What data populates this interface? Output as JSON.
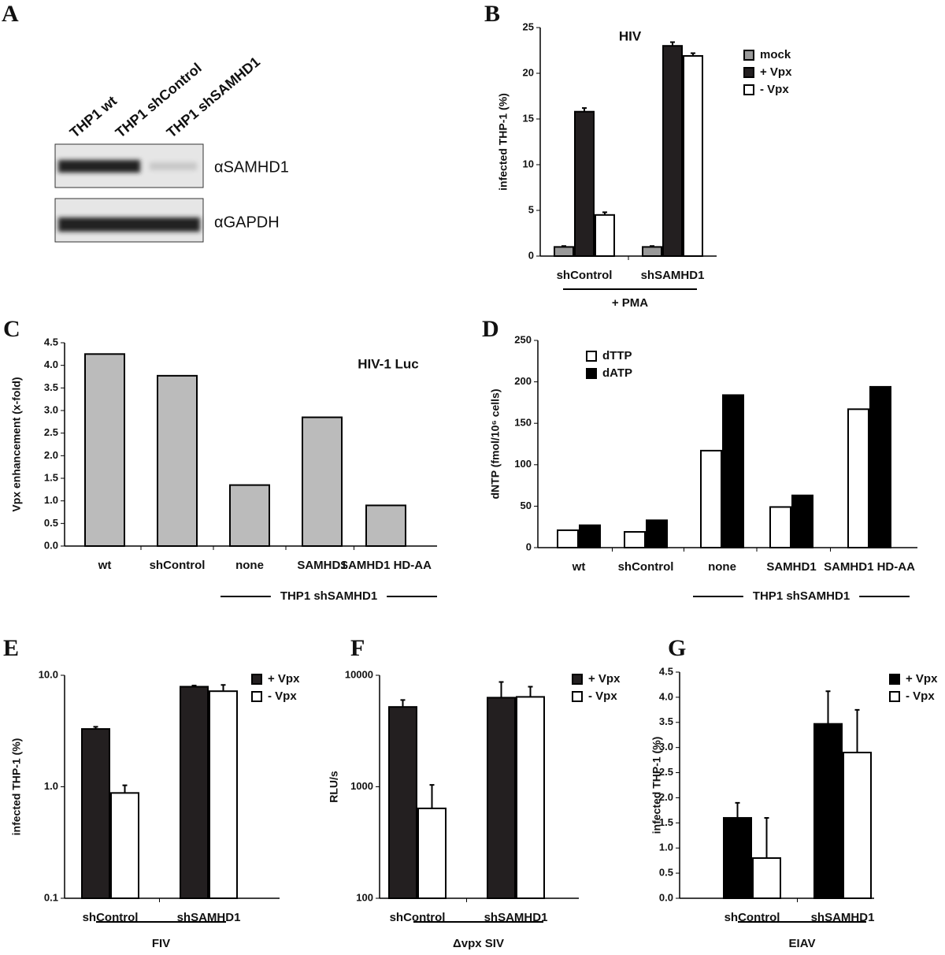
{
  "blot": {
    "label": "A",
    "lanes": [
      "THP1 wt",
      "THP1 shControl",
      "THP1 shSAMHD1"
    ],
    "antibodies": [
      "αSAMHD1",
      "αGAPDH"
    ]
  },
  "chart_data": [
    {
      "type": "bar",
      "label": "B",
      "title": "HIV",
      "ylabel": "infected THP-1 (%)",
      "categories": [
        "shControl",
        "shSAMHD1"
      ],
      "group_label": "+ PMA",
      "series": [
        {
          "name": "mock",
          "color": "#999999",
          "values": [
            1,
            1
          ],
          "errors": [
            0.1,
            0.1
          ]
        },
        {
          "name": "+ Vpx",
          "color": "#231f20",
          "values": [
            15.8,
            23
          ],
          "errors": [
            0.4,
            0.4
          ]
        },
        {
          "name": " - Vpx",
          "color": "#ffffff",
          "values": [
            4.5,
            21.9
          ],
          "errors": [
            0.3,
            0.3
          ]
        }
      ],
      "ylim": [
        0,
        25
      ],
      "yticks": [
        0,
        5,
        10,
        15,
        20,
        25
      ],
      "legend": "upper right"
    },
    {
      "type": "bar",
      "label": "C",
      "title": "HIV-1 Luc",
      "ylabel": "Vpx enhancement (x-fold)",
      "categories": [
        "wt",
        "shControl",
        "none",
        "SAMHD1",
        "SAMHD1 HD-AA"
      ],
      "group_label": "THP1 shSAMHD1",
      "series": [
        {
          "color": "#bbbbbb",
          "values": [
            4.25,
            3.77,
            1.35,
            2.85,
            0.9
          ]
        }
      ],
      "ylim": [
        0,
        4.5
      ],
      "yticks": [
        {
          "value": 0,
          "label": "0.0"
        },
        0.5,
        {
          "value": 1,
          "label": "1.0"
        },
        1.5,
        {
          "value": 2,
          "label": "2.0"
        },
        2.5,
        {
          "value": 3,
          "label": "3.0"
        },
        3.5,
        {
          "value": 4,
          "label": "4.0"
        },
        4.5
      ]
    },
    {
      "type": "bar",
      "label": "D",
      "ylabel": "dNTP (fmol/10⁶ cells)",
      "categories": [
        "wt",
        "shControl",
        "none",
        "SAMHD1",
        "SAMHD1 HD-AA"
      ],
      "group_label": "THP1 shSAMHD1",
      "series": [
        {
          "name": "dTTP",
          "color": "#ffffff",
          "values": [
            21,
            19,
            117,
            49,
            167
          ]
        },
        {
          "name": "dATP",
          "color": "#000000",
          "values": [
            27,
            33,
            184,
            63,
            194
          ]
        }
      ],
      "ylim": [
        0,
        250
      ],
      "yticks": [
        0,
        50,
        100,
        150,
        200,
        250
      ],
      "legend": "upper left"
    },
    {
      "type": "bar",
      "label": "E",
      "ylabel": "infected THP-1 (%)",
      "categories": [
        "shControl",
        "shSAMHD1"
      ],
      "group_label": "FIV",
      "log_scale": true,
      "series": [
        {
          "name": "+ Vpx",
          "color": "#231f20",
          "values": [
            3.3,
            7.9
          ],
          "errors": [
            0.15,
            0.2
          ]
        },
        {
          "name": " - Vpx",
          "color": "#ffffff",
          "values": [
            0.88,
            7.2
          ],
          "errors": [
            0.15,
            1.0
          ]
        }
      ],
      "ylim": [
        0.1,
        10
      ],
      "yticks": [
        0.1,
        {
          "value": 1,
          "label": "1.0"
        },
        {
          "value": 10,
          "label": "10.0"
        }
      ],
      "legend": "upper right"
    },
    {
      "type": "bar",
      "label": "F",
      "ylabel": "RLU/s",
      "categories": [
        "shControl",
        "shSAMHD1"
      ],
      "group_label": "Δvpx SIV",
      "log_scale": true,
      "series": [
        {
          "name": "+ Vpx",
          "color": "#231f20",
          "values": [
            5200,
            6300
          ],
          "errors": [
            800,
            2400
          ]
        },
        {
          "name": " - Vpx",
          "color": "#ffffff",
          "values": [
            640,
            6400
          ],
          "errors": [
            400,
            1500
          ]
        }
      ],
      "ylim": [
        100,
        10000
      ],
      "yticks": [
        100,
        1000,
        10000
      ],
      "legend": "upper right"
    },
    {
      "type": "bar",
      "label": "G",
      "ylabel": "infected THP-1 (%)",
      "categories": [
        "shControl",
        "shSAMHD1"
      ],
      "group_label": "EIAV",
      "series": [
        {
          "name": "+ Vpx",
          "color": "#000000",
          "values": [
            1.6,
            3.47
          ],
          "errors": [
            0.3,
            0.65
          ]
        },
        {
          "name": " - Vpx",
          "color": "#ffffff",
          "values": [
            0.8,
            2.9
          ],
          "errors": [
            0.8,
            0.85
          ]
        }
      ],
      "ylim": [
        0,
        4.5
      ],
      "yticks": [
        {
          "value": 0,
          "label": "0.0"
        },
        0.5,
        {
          "value": 1,
          "label": "1.0"
        },
        1.5,
        {
          "value": 2,
          "label": "2.0"
        },
        2.5,
        {
          "value": 3,
          "label": "3.0"
        },
        3.5,
        {
          "value": 4,
          "label": "4.0"
        },
        4.5
      ],
      "legend": "upper right"
    }
  ]
}
